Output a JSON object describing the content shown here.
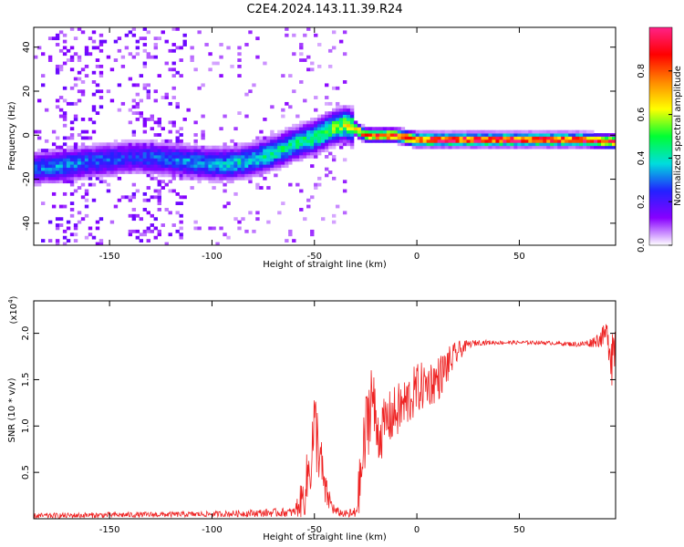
{
  "title": "C2E4.2024.143.11.39.R24",
  "colors": {
    "snr_line": "#ee2222",
    "colorbar": [
      "#ffffff",
      "#8800ff",
      "#2222ff",
      "#00dddd",
      "#00ff33",
      "#ffff00",
      "#ff8800",
      "#ff0000",
      "#ff2288"
    ]
  },
  "chart_data": [
    {
      "type": "heatmap",
      "name": "spectrogram",
      "xlabel": "Height of straight line (km)",
      "ylabel": "Frequency (Hz)",
      "xlim": [
        -187,
        97
      ],
      "ylim": [
        -50,
        49
      ],
      "xticks": [
        -150,
        -100,
        -50,
        0,
        50
      ],
      "yticks": [
        -40,
        -20,
        0,
        20,
        40
      ],
      "colorbar": {
        "label": "Normalized spectral amplitude",
        "range": [
          0.0,
          1.0
        ],
        "ticks": [
          "0.0",
          "0.2",
          "0.4",
          "0.6",
          "0.8"
        ]
      },
      "ridge_x": [
        -187,
        -175,
        -160,
        -150,
        -140,
        -130,
        -120,
        -110,
        -100,
        -90,
        -80,
        -70,
        -60,
        -50,
        -42,
        -35,
        -30,
        -25,
        -20,
        -10,
        0,
        20,
        40,
        60,
        80,
        97
      ],
      "ridge_y": [
        -15,
        -14,
        -12,
        -11,
        -10,
        -10,
        -11,
        -12,
        -13,
        -13,
        -11,
        -8,
        -4,
        -1,
        3,
        5,
        3,
        0,
        0,
        0,
        -2,
        -2,
        -2,
        -2,
        -2,
        -3
      ],
      "ridge_amp": [
        0.3,
        0.35,
        0.3,
        0.3,
        0.25,
        0.3,
        0.3,
        0.35,
        0.35,
        0.4,
        0.4,
        0.45,
        0.45,
        0.5,
        0.55,
        0.6,
        0.7,
        0.85,
        0.9,
        0.92,
        0.95,
        0.97,
        0.97,
        0.97,
        0.95,
        0.9
      ]
    },
    {
      "type": "line",
      "name": "snr",
      "xlabel": "Height of straight line (km)",
      "ylabel": "SNR (10 * v/v)",
      "multiplier": "(x10",
      "multiplier_exp": "4",
      "multiplier_close": ")",
      "xlim": [
        -187,
        97
      ],
      "ylim": [
        0,
        2.35
      ],
      "xticks": [
        -150,
        -100,
        -50,
        0,
        50
      ],
      "yticks": [
        0.5,
        1.0,
        1.5,
        2.0
      ],
      "ytick_labels": [
        "0.5",
        "1.0",
        "1.5",
        "2.0"
      ],
      "envelope_x": [
        -187,
        -150,
        -100,
        -60,
        -55,
        -52,
        -50,
        -48,
        -45,
        -40,
        -35,
        -30,
        -27,
        -25,
        -22,
        -20,
        -18,
        -15,
        -10,
        -5,
        0,
        5,
        10,
        15,
        20,
        25,
        30,
        40,
        50,
        60,
        70,
        80,
        85,
        90,
        93,
        95,
        97
      ],
      "envelope_y": [
        0.03,
        0.04,
        0.05,
        0.07,
        0.25,
        0.6,
        1.0,
        0.8,
        0.3,
        0.08,
        0.05,
        0.05,
        0.5,
        0.9,
        1.4,
        1.0,
        0.9,
        1.05,
        1.15,
        1.25,
        1.4,
        1.45,
        1.5,
        1.65,
        1.8,
        1.88,
        1.9,
        1.9,
        1.9,
        1.9,
        1.89,
        1.88,
        1.9,
        1.95,
        2.0,
        1.8,
        1.9
      ],
      "noise_amp": [
        0.03,
        0.03,
        0.03,
        0.05,
        0.25,
        0.4,
        0.45,
        0.4,
        0.2,
        0.05,
        0.04,
        0.08,
        0.4,
        0.45,
        0.45,
        0.35,
        0.3,
        0.3,
        0.3,
        0.3,
        0.28,
        0.25,
        0.25,
        0.2,
        0.12,
        0.04,
        0.03,
        0.02,
        0.02,
        0.02,
        0.02,
        0.03,
        0.05,
        0.1,
        0.15,
        0.4,
        0.3
      ]
    }
  ]
}
